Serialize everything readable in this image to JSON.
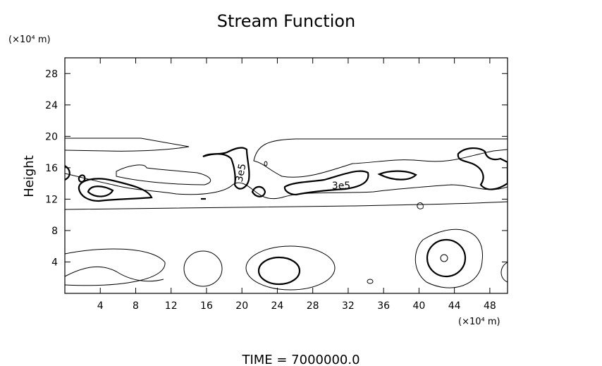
{
  "chart_data": {
    "type": "contour",
    "title": "Stream Function",
    "x_unit": "(×10⁴ m)",
    "y_unit": "(×10⁴ m)",
    "y_label": "Height",
    "footer": "TIME = 7000000.0",
    "xlim": [
      0,
      50
    ],
    "ylim": [
      0,
      30
    ],
    "xticks": [
      4,
      8,
      12,
      16,
      20,
      24,
      28,
      32,
      36,
      40,
      44,
      48
    ],
    "yticks": [
      4,
      8,
      12,
      16,
      20,
      24,
      28
    ],
    "contour_labels": [
      "3e5",
      "3e5"
    ],
    "color": "#000000"
  }
}
